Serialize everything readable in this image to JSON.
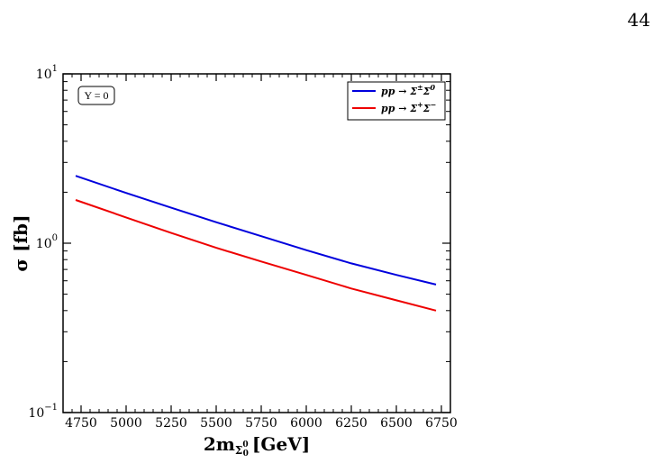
{
  "page": {
    "number": "44"
  },
  "chart_data": {
    "type": "line",
    "xlabel": "2m",
    "xlabel_sub": "Σ",
    "xlabel_subsub": "0",
    "xlabel_subsup": "0",
    "xlabel_unit": "[GeV]",
    "ylabel": "σ [fb]",
    "xlim": [
      4650,
      6800
    ],
    "ylim": [
      0.1,
      10
    ],
    "yscale": "log",
    "xticks": [
      4750,
      5000,
      5250,
      5500,
      5750,
      6000,
      6250,
      6500,
      6750
    ],
    "yticks": [
      {
        "value": 0.1,
        "base": "10",
        "exp": "−1"
      },
      {
        "value": 1,
        "base": "10",
        "exp": "0"
      },
      {
        "value": 10,
        "base": "10",
        "exp": "1"
      }
    ],
    "annotation": "Y = 0",
    "legend_position": "top-right",
    "series": [
      {
        "name": "pp → Σ±Σ0",
        "legend": {
          "prefix": "pp → Σ",
          "sup1": "±",
          "mid": "Σ",
          "sup2": "0"
        },
        "color": "#0000dd",
        "x": [
          4720,
          5000,
          5250,
          5500,
          5750,
          6000,
          6250,
          6500,
          6720
        ],
        "y": [
          2.5,
          1.98,
          1.62,
          1.33,
          1.1,
          0.91,
          0.76,
          0.65,
          0.57
        ]
      },
      {
        "name": "pp → Σ+Σ−",
        "legend": {
          "prefix": "pp → Σ",
          "sup1": "+",
          "mid": "Σ",
          "sup2": "−"
        },
        "color": "#ee0000",
        "x": [
          4720,
          5000,
          5250,
          5500,
          5750,
          6000,
          6250,
          6500,
          6720
        ],
        "y": [
          1.8,
          1.42,
          1.15,
          0.94,
          0.78,
          0.65,
          0.54,
          0.46,
          0.4
        ]
      }
    ]
  }
}
